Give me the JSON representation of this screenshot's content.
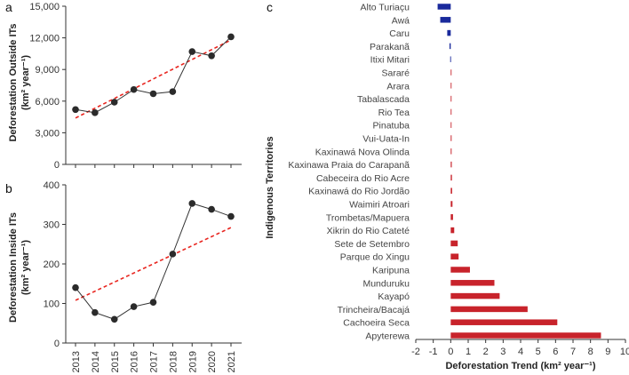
{
  "chart_data": [
    {
      "id": "a",
      "panel_label": "a",
      "type": "line",
      "x": [
        2013,
        2014,
        2015,
        2016,
        2017,
        2018,
        2019,
        2020,
        2021
      ],
      "values": [
        5200,
        4900,
        5900,
        7100,
        6700,
        6900,
        10700,
        10300,
        12100
      ],
      "trend": [
        4400,
        11800
      ],
      "ylim": [
        0,
        15000
      ],
      "yticks": [
        "0",
        "3,000",
        "6,000",
        "9,000",
        "12,000",
        "15,000"
      ],
      "ylabel_line1": "Deforestation Outside ITs",
      "ylabel_line2": "(km² year⁻¹)",
      "colors": {
        "line": "#333333",
        "point": "#2b2b2b",
        "trend": "#e8251f"
      }
    },
    {
      "id": "b",
      "panel_label": "b",
      "type": "line",
      "x": [
        2013,
        2014,
        2015,
        2016,
        2017,
        2018,
        2019,
        2020,
        2021
      ],
      "values": [
        140,
        77,
        60,
        92,
        103,
        225,
        353,
        338,
        320
      ],
      "trend": [
        108,
        292
      ],
      "ylim": [
        0,
        400
      ],
      "yticks": [
        "0",
        "100",
        "200",
        "300",
        "400"
      ],
      "xticks": [
        "2013",
        "2014",
        "2015",
        "2016",
        "2017",
        "2018",
        "2019",
        "2020",
        "2021"
      ],
      "ylabel_line1": "Deforestation Inside ITs",
      "ylabel_line2": "(km² year⁻¹)",
      "colors": {
        "line": "#333333",
        "point": "#2b2b2b",
        "trend": "#e8251f"
      }
    },
    {
      "id": "c",
      "panel_label": "c",
      "type": "bar",
      "orientation": "horizontal",
      "categories": [
        "Alto Turiaçu",
        "Awá",
        "Caru",
        "Parakanã",
        "Itixi Mitari",
        "Sararé",
        "Arara",
        "Tabalascada",
        "Rio Tea",
        "Pinatuba",
        "Vui-Uata-In",
        "Kaxinawá Nova Olinda",
        "Kaxinawa Praia do Carapanã",
        "Cabeceira do Rio Acre",
        "Kaxinawá do Rio Jordão",
        "Waimiri Atroari",
        "Trombetas/Mapuera",
        "Xikrin do Rio Cateté",
        "Sete de Setembro",
        "Parque do Xingu",
        "Karipuna",
        "Munduruku",
        "Kayapó",
        "Trincheira/Bacajá",
        "Cachoeira Seca",
        "Apyterewa"
      ],
      "values": [
        -0.75,
        -0.6,
        -0.2,
        -0.07,
        -0.03,
        0.02,
        0.03,
        0.03,
        0.03,
        0.04,
        0.05,
        0.05,
        0.06,
        0.07,
        0.08,
        0.1,
        0.13,
        0.2,
        0.4,
        0.45,
        1.1,
        2.5,
        2.8,
        4.4,
        6.1,
        8.6
      ],
      "xlim": [
        -2,
        10
      ],
      "xticks": [
        "-2",
        "-1",
        "0",
        "1",
        "2",
        "3",
        "4",
        "5",
        "6",
        "7",
        "8",
        "9",
        "10"
      ],
      "xlabel": "Deforestation Trend (km² year⁻¹)",
      "ylabel": "Indigenous Territories",
      "colors": {
        "positive": "#c8232b",
        "negative": "#1a2a9c"
      }
    }
  ]
}
